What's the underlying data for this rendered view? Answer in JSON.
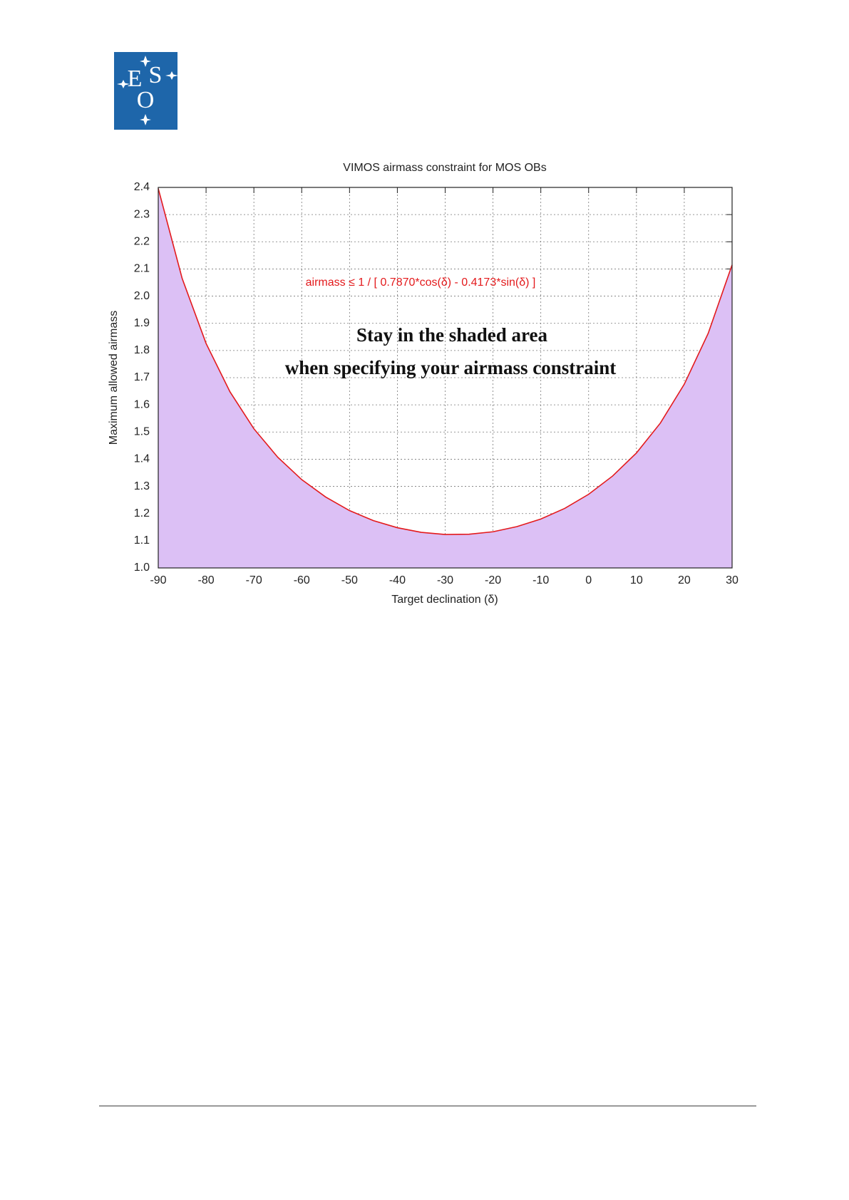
{
  "logo": {
    "letters": [
      "E",
      "S",
      "O"
    ]
  },
  "chart_data": {
    "type": "area",
    "title": "VIMOS airmass constraint for MOS OBs",
    "x_label": "Target declination (δ)",
    "y_label": "Maximum allowed airmass",
    "annotations": [
      "airmass  ≤  1 / [ 0.7870*cos(δ) - 0.4173*sin(δ) ]",
      "Stay in the shaded area",
      "when specifying your airmass constraint"
    ],
    "x": [
      -90,
      -85,
      -80,
      -75,
      -70,
      -65,
      -60,
      -55,
      -50,
      -45,
      -40,
      -35,
      -30,
      -25,
      -20,
      -15,
      -10,
      -5,
      0,
      5,
      10,
      15,
      20,
      25,
      30
    ],
    "series": [
      {
        "color": "#e31a1c",
        "fill": "#dcc0f5",
        "values": [
          2.396,
          2.065,
          1.826,
          1.648,
          1.512,
          1.407,
          1.325,
          1.261,
          1.211,
          1.174,
          1.148,
          1.131,
          1.123,
          1.124,
          1.133,
          1.152,
          1.18,
          1.219,
          1.271,
          1.338,
          1.423,
          1.533,
          1.676,
          1.863,
          2.115
        ]
      }
    ],
    "xlim": [
      -90,
      30
    ],
    "xticks": [
      -90,
      -80,
      -70,
      -60,
      -50,
      -40,
      -30,
      -20,
      -10,
      0,
      10,
      20,
      30
    ],
    "ylim": [
      1.0,
      2.4
    ],
    "yticks": [
      {
        "value": 1.0,
        "label": "1.0"
      },
      1.1,
      1.2,
      1.3,
      1.4,
      1.5,
      1.6,
      1.7,
      1.8,
      1.9,
      {
        "value": 2.0,
        "label": "2.0"
      },
      2.1,
      2.2,
      2.3,
      2.4
    ],
    "grid": true
  }
}
